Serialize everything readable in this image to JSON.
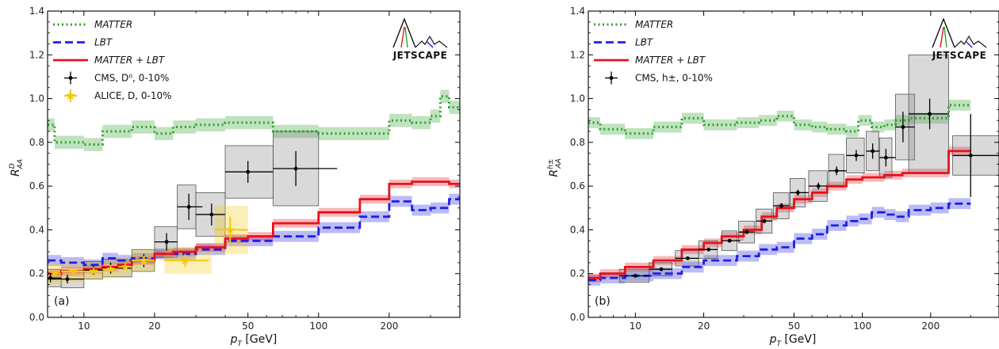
{
  "colors": {
    "matter": "#2ca02c",
    "lbt": "#1f1fe6",
    "matter_lbt": "#e8111b",
    "cms": "#000000",
    "alice": "#f2c811",
    "sys_band": "#808080",
    "background": "#ffffff"
  },
  "logo_text": "JETSCAPE",
  "chart_data": [
    {
      "type": "line",
      "panel_label": "(a)",
      "xlabel": "pT [GeV]",
      "ylabel": "R_AA^D",
      "xscale": "log",
      "xlim": [
        7,
        400
      ],
      "ylim": [
        0.0,
        1.4
      ],
      "xticks": [
        10,
        20,
        50,
        100,
        200
      ],
      "xtick_labels": [
        "10",
        "20",
        "50",
        "100",
        "200"
      ],
      "yticks": [
        0.0,
        0.2,
        0.4,
        0.6,
        0.8,
        1.0,
        1.2,
        1.4
      ],
      "ytick_labels": [
        "0.0",
        "0.2",
        "0.4",
        "0.6",
        "0.8",
        "1.0",
        "1.2",
        "1.4"
      ],
      "legend_position": "top-left",
      "legend": [
        {
          "key": "matter",
          "style": "dotted",
          "label": "MATTER"
        },
        {
          "key": "lbt",
          "style": "dashed",
          "label": "LBT"
        },
        {
          "key": "matter_lbt",
          "style": "solid",
          "label": "MATTER + LBT"
        },
        {
          "key": "cms",
          "style": "errorbar",
          "label": "CMS, D⁰, 0-10%"
        },
        {
          "key": "alice",
          "style": "star",
          "label": "ALICE, D, 0-10%"
        }
      ],
      "series": [
        {
          "key": "matter",
          "name": "MATTER",
          "band": 0.03,
          "edges": [
            7,
            7.5,
            10,
            12,
            16,
            20,
            24,
            30,
            40,
            50,
            64,
            84,
            100,
            130,
            200,
            250,
            300,
            330,
            360,
            400
          ],
          "values": [
            0.88,
            0.8,
            0.79,
            0.85,
            0.87,
            0.84,
            0.87,
            0.88,
            0.89,
            0.89,
            0.85,
            0.85,
            0.84,
            0.84,
            0.9,
            0.89,
            0.92,
            1.01,
            0.96
          ]
        },
        {
          "key": "lbt",
          "name": "LBT",
          "band": 0.025,
          "edges": [
            7,
            8,
            10,
            12,
            14,
            16,
            20,
            24,
            30,
            40,
            50,
            64,
            84,
            100,
            150,
            200,
            250,
            300,
            360,
            400
          ],
          "values": [
            0.26,
            0.25,
            0.24,
            0.27,
            0.26,
            0.27,
            0.29,
            0.29,
            0.31,
            0.35,
            0.35,
            0.37,
            0.37,
            0.41,
            0.46,
            0.53,
            0.49,
            0.5,
            0.54
          ]
        },
        {
          "key": "matter_lbt",
          "name": "MATTER + LBT",
          "band": 0.02,
          "edges": [
            7,
            8,
            10,
            12,
            14,
            16,
            20,
            24,
            30,
            40,
            50,
            64,
            100,
            150,
            200,
            250,
            300,
            360,
            400
          ],
          "values": [
            0.2,
            0.21,
            0.22,
            0.23,
            0.24,
            0.26,
            0.29,
            0.3,
            0.32,
            0.36,
            0.37,
            0.43,
            0.48,
            0.54,
            0.61,
            0.62,
            0.62,
            0.61
          ]
        }
      ],
      "points": [
        {
          "key": "cms",
          "name": "CMS, D⁰, 0-10%",
          "x": [
            7.2,
            8.5,
            11,
            13,
            18,
            22.5,
            28,
            35,
            50,
            80
          ],
          "y": [
            0.18,
            0.175,
            0.215,
            0.225,
            0.26,
            0.345,
            0.505,
            0.47,
            0.665,
            0.68
          ],
          "xerr_lo": [
            0.2,
            1.5,
            1.0,
            1.0,
            2.0,
            2.5,
            3.0,
            5.0,
            10.0,
            16.0
          ],
          "xerr_hi": [
            0.8,
            1.5,
            1.0,
            3.0,
            2.0,
            2.5,
            4.0,
            5.0,
            14.0,
            40.0
          ],
          "yerr": [
            0.02,
            0.02,
            0.02,
            0.025,
            0.03,
            0.04,
            0.06,
            0.05,
            0.05,
            0.08
          ],
          "sys_lo": [
            7.0,
            8.0,
            10.0,
            12.0,
            16.0,
            20.0,
            25.0,
            30.0,
            40.0,
            64.0
          ],
          "sys_hi": [
            8.0,
            10.0,
            12.0,
            16.0,
            20.0,
            25.0,
            30.0,
            40.0,
            64.0,
            100.0
          ],
          "sys": [
            0.04,
            0.04,
            0.04,
            0.04,
            0.05,
            0.07,
            0.1,
            0.1,
            0.12,
            0.17
          ]
        },
        {
          "key": "alice",
          "name": "ALICE, D, 0-10%",
          "x": [
            7.5,
            9.0,
            11.0,
            13.0,
            15.0,
            18.0,
            27.0,
            42.0
          ],
          "y": [
            0.2,
            0.21,
            0.21,
            0.22,
            0.23,
            0.26,
            0.26,
            0.4
          ],
          "xerr_lo": [
            0.3,
            1.0,
            1.0,
            1.0,
            1.0,
            2.0,
            5.0,
            6.0
          ],
          "xerr_hi": [
            0.5,
            1.0,
            1.0,
            1.0,
            1.0,
            2.0,
            7.0,
            8.0
          ],
          "yerr": [
            0.01,
            0.01,
            0.01,
            0.01,
            0.01,
            0.02,
            0.03,
            0.06
          ],
          "sys_lo": [
            7.0,
            8.0,
            10.0,
            12.0,
            14.0,
            16.0,
            22.0,
            36.0
          ],
          "sys_hi": [
            8.0,
            10.0,
            12.0,
            14.0,
            16.0,
            20.0,
            35.0,
            50.0
          ],
          "sys": [
            0.05,
            0.05,
            0.04,
            0.04,
            0.04,
            0.05,
            0.06,
            0.11
          ]
        }
      ]
    },
    {
      "type": "line",
      "panel_label": "(b)",
      "xlabel": "pT [GeV]",
      "ylabel": "R_AA^h±",
      "xscale": "log",
      "xlim": [
        6.2,
        400
      ],
      "ylim": [
        0.0,
        1.4
      ],
      "xticks": [
        10,
        20,
        50,
        100,
        200
      ],
      "xtick_labels": [
        "10",
        "20",
        "50",
        "100",
        "200"
      ],
      "yticks": [
        0.0,
        0.2,
        0.4,
        0.6,
        0.8,
        1.0,
        1.2,
        1.4
      ],
      "ytick_labels": [
        "0.0",
        "0.2",
        "0.4",
        "0.6",
        "0.8",
        "1.0",
        "1.2",
        "1.4"
      ],
      "legend_position": "top-left",
      "legend": [
        {
          "key": "matter",
          "style": "dotted",
          "label": "MATTER"
        },
        {
          "key": "lbt",
          "style": "dashed",
          "label": "LBT"
        },
        {
          "key": "matter_lbt",
          "style": "solid",
          "label": "MATTER + LBT"
        },
        {
          "key": "cms",
          "style": "errorbar",
          "label": "CMS, h±, 0-10%"
        }
      ],
      "series": [
        {
          "key": "matter",
          "name": "MATTER",
          "band": 0.025,
          "edges": [
            6.2,
            7,
            9,
            12,
            16,
            20,
            28,
            35,
            42,
            50,
            60,
            70,
            85,
            96,
            110,
            125,
            140,
            160,
            200,
            240,
            300
          ],
          "values": [
            0.89,
            0.86,
            0.84,
            0.87,
            0.91,
            0.88,
            0.89,
            0.9,
            0.92,
            0.88,
            0.87,
            0.86,
            0.85,
            0.9,
            0.87,
            0.88,
            0.9,
            0.91,
            0.91,
            0.97
          ]
        },
        {
          "key": "lbt",
          "name": "LBT",
          "band": 0.025,
          "edges": [
            6.2,
            7,
            9,
            12,
            16,
            20,
            28,
            35,
            42,
            50,
            60,
            70,
            85,
            96,
            110,
            125,
            140,
            160,
            200,
            240,
            300
          ],
          "values": [
            0.17,
            0.18,
            0.19,
            0.2,
            0.23,
            0.26,
            0.28,
            0.31,
            0.32,
            0.36,
            0.38,
            0.42,
            0.44,
            0.45,
            0.48,
            0.47,
            0.46,
            0.49,
            0.5,
            0.52
          ]
        },
        {
          "key": "matter_lbt",
          "name": "MATTER + LBT",
          "band": 0.02,
          "edges": [
            6.2,
            7,
            9,
            12,
            16,
            20,
            24,
            30,
            36,
            42,
            50,
            60,
            70,
            85,
            100,
            125,
            150,
            240,
            300
          ],
          "values": [
            0.18,
            0.2,
            0.23,
            0.26,
            0.31,
            0.34,
            0.37,
            0.4,
            0.46,
            0.5,
            0.54,
            0.57,
            0.6,
            0.63,
            0.64,
            0.65,
            0.66,
            0.76
          ]
        }
      ],
      "points": [
        {
          "key": "cms",
          "name": "CMS, h±, 0-10%",
          "x": [
            10,
            13,
            17,
            21,
            26,
            31,
            37,
            44,
            52,
            64,
            77,
            94,
            111,
            127,
            151,
            198,
            300
          ],
          "y": [
            0.19,
            0.22,
            0.27,
            0.31,
            0.35,
            0.39,
            0.44,
            0.51,
            0.57,
            0.6,
            0.67,
            0.74,
            0.76,
            0.73,
            0.87,
            0.93,
            0.74
          ],
          "xerr_lo": [
            1.5,
            1.5,
            2.0,
            2.0,
            2.0,
            2.5,
            3.0,
            3.5,
            4.0,
            6.0,
            6.0,
            9.0,
            7.0,
            8.0,
            11.0,
            38.0,
            50.0
          ],
          "xerr_hi": [
            1.5,
            1.5,
            2.0,
            2.0,
            3.0,
            2.5,
            3.0,
            3.5,
            6.0,
            6.0,
            8.0,
            8.0,
            8.0,
            13.0,
            19.0,
            42.0,
            100.0
          ],
          "yerr": [
            0.005,
            0.005,
            0.005,
            0.006,
            0.007,
            0.008,
            0.01,
            0.012,
            0.014,
            0.016,
            0.02,
            0.025,
            0.035,
            0.04,
            0.07,
            0.07,
            0.19
          ],
          "sys_lo": [
            8.5,
            11.5,
            15.0,
            19.0,
            24.0,
            28.5,
            34.0,
            40.5,
            48.0,
            58.0,
            71.0,
            85.0,
            104.0,
            119.0,
            140.0,
            160.0,
            250.0
          ],
          "sys_hi": [
            11.5,
            14.5,
            19.0,
            23.0,
            28.0,
            33.5,
            40.0,
            47.5,
            56.0,
            70.0,
            83.0,
            102.0,
            118.0,
            135.0,
            170.0,
            240.0,
            400.0
          ],
          "sys": [
            0.03,
            0.03,
            0.035,
            0.04,
            0.045,
            0.05,
            0.055,
            0.06,
            0.065,
            0.07,
            0.075,
            0.08,
            0.09,
            0.09,
            0.15,
            0.27,
            0.09
          ]
        }
      ]
    }
  ]
}
